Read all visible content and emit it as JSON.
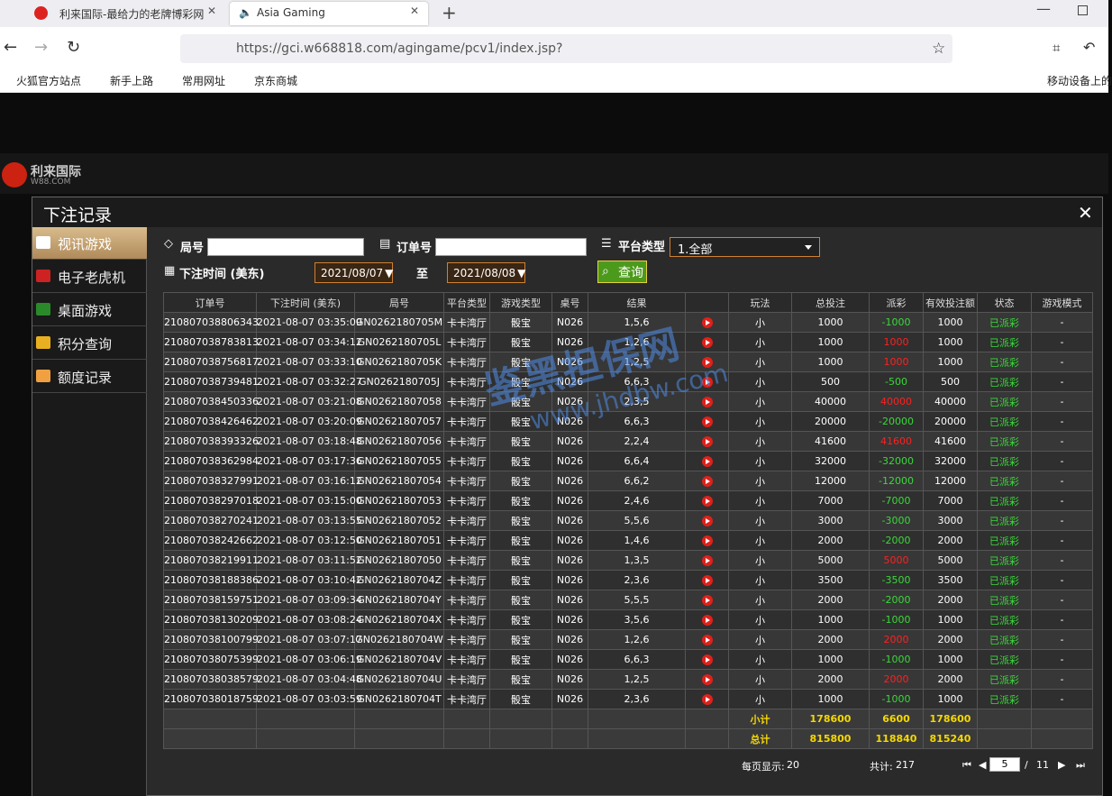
{
  "browser": {
    "tabs": [
      "利来国际-最给力的老牌博彩网",
      "Asia Gaming"
    ],
    "url": "https://gci.w668818.com/agingame/pcv1/index.jsp?",
    "bookmarks": [
      "火狐官方站点",
      "新手上路",
      "常用网址",
      "京东商城"
    ],
    "mobile_bookmarks": "移动设备上的"
  },
  "site": {
    "logo": "利来国际",
    "logo_sub": "W88.COM"
  },
  "watermark": {
    "title": "鉴黑担保网",
    "url": "www.jhdbw.com"
  },
  "modal": {
    "title": "下注记录",
    "sidebar": [
      "视讯游戏",
      "电子老虎机",
      "桌面游戏",
      "积分查询",
      "额度记录"
    ],
    "filters": {
      "round_label": "局号",
      "order_label": "订单号",
      "platform_label": "平台类型",
      "platform_value": "1.全部",
      "time_label": "下注时间 (美东)",
      "date_from": "2021/08/07",
      "to_label": "至",
      "date_to": "2021/08/08",
      "search": "查询"
    },
    "table": {
      "headers": [
        "订单号",
        "下注时间 (美东)",
        "局号",
        "平台类型",
        "游戏类型",
        "桌号",
        "结果",
        "玩法",
        "总投注",
        "派彩",
        "有效投注额",
        "状态",
        "游戏模式"
      ],
      "rows": [
        [
          "210807038806343",
          "2021-08-07 03:35:09",
          "GN0262180705M",
          "卡卡湾厅",
          "骰宝",
          "N026",
          "1,5,6",
          "小",
          1000,
          -1000,
          1000,
          "已派彩",
          "-"
        ],
        [
          "210807038783813",
          "2021-08-07 03:34:12",
          "GN0262180705L",
          "卡卡湾厅",
          "骰宝",
          "N026",
          "1,2,6",
          "小",
          1000,
          1000,
          1000,
          "已派彩",
          "-"
        ],
        [
          "210807038756817",
          "2021-08-07 03:33:10",
          "GN0262180705K",
          "卡卡湾厅",
          "骰宝",
          "N026",
          "1,2,5",
          "小",
          1000,
          1000,
          1000,
          "已派彩",
          "-"
        ],
        [
          "210807038739481",
          "2021-08-07 03:32:27",
          "GN0262180705J",
          "卡卡湾厅",
          "骰宝",
          "N026",
          "6,6,3",
          "小",
          500,
          -500,
          500,
          "已派彩",
          "-"
        ],
        [
          "210807038450336",
          "2021-08-07 03:21:08",
          "GN02621807058",
          "卡卡湾厅",
          "骰宝",
          "N026",
          "2,3,5",
          "小",
          40000,
          40000,
          40000,
          "已派彩",
          "-"
        ],
        [
          "210807038426462",
          "2021-08-07 03:20:09",
          "GN02621807057",
          "卡卡湾厅",
          "骰宝",
          "N026",
          "6,6,3",
          "小",
          20000,
          -20000,
          20000,
          "已派彩",
          "-"
        ],
        [
          "210807038393326",
          "2021-08-07 03:18:48",
          "GN02621807056",
          "卡卡湾厅",
          "骰宝",
          "N026",
          "2,2,4",
          "小",
          41600,
          41600,
          41600,
          "已派彩",
          "-"
        ],
        [
          "210807038362984",
          "2021-08-07 03:17:36",
          "GN02621807055",
          "卡卡湾厅",
          "骰宝",
          "N026",
          "6,6,4",
          "小",
          32000,
          -32000,
          32000,
          "已派彩",
          "-"
        ],
        [
          "210807038327991",
          "2021-08-07 03:16:12",
          "GN02621807054",
          "卡卡湾厅",
          "骰宝",
          "N026",
          "6,6,2",
          "小",
          12000,
          -12000,
          12000,
          "已派彩",
          "-"
        ],
        [
          "210807038297018",
          "2021-08-07 03:15:00",
          "GN02621807053",
          "卡卡湾厅",
          "骰宝",
          "N026",
          "2,4,6",
          "小",
          7000,
          -7000,
          7000,
          "已派彩",
          "-"
        ],
        [
          "210807038270241",
          "2021-08-07 03:13:55",
          "GN02621807052",
          "卡卡湾厅",
          "骰宝",
          "N026",
          "5,5,6",
          "小",
          3000,
          -3000,
          3000,
          "已派彩",
          "-"
        ],
        [
          "210807038242662",
          "2021-08-07 03:12:50",
          "GN02621807051",
          "卡卡湾厅",
          "骰宝",
          "N026",
          "1,4,6",
          "小",
          2000,
          -2000,
          2000,
          "已派彩",
          "-"
        ],
        [
          "210807038219911",
          "2021-08-07 03:11:52",
          "GN02621807050",
          "卡卡湾厅",
          "骰宝",
          "N026",
          "1,3,5",
          "小",
          5000,
          5000,
          5000,
          "已派彩",
          "-"
        ],
        [
          "210807038188386",
          "2021-08-07 03:10:42",
          "GN0262180704Z",
          "卡卡湾厅",
          "骰宝",
          "N026",
          "2,3,6",
          "小",
          3500,
          -3500,
          3500,
          "已派彩",
          "-"
        ],
        [
          "210807038159751",
          "2021-08-07 03:09:34",
          "GN0262180704Y",
          "卡卡湾厅",
          "骰宝",
          "N026",
          "5,5,5",
          "小",
          2000,
          -2000,
          2000,
          "已派彩",
          "-"
        ],
        [
          "210807038130209",
          "2021-08-07 03:08:24",
          "GN0262180704X",
          "卡卡湾厅",
          "骰宝",
          "N026",
          "3,5,6",
          "小",
          1000,
          -1000,
          1000,
          "已派彩",
          "-"
        ],
        [
          "210807038100799",
          "2021-08-07 03:07:17",
          "GN0262180704W",
          "卡卡湾厅",
          "骰宝",
          "N026",
          "1,2,6",
          "小",
          2000,
          2000,
          2000,
          "已派彩",
          "-"
        ],
        [
          "210807038075399",
          "2021-08-07 03:06:19",
          "GN0262180704V",
          "卡卡湾厅",
          "骰宝",
          "N026",
          "6,6,3",
          "小",
          1000,
          -1000,
          1000,
          "已派彩",
          "-"
        ],
        [
          "210807038038579",
          "2021-08-07 03:04:48",
          "GN0262180704U",
          "卡卡湾厅",
          "骰宝",
          "N026",
          "1,2,5",
          "小",
          2000,
          2000,
          2000,
          "已派彩",
          "-"
        ],
        [
          "210807038018759",
          "2021-08-07 03:03:59",
          "GN0262180704T",
          "卡卡湾厅",
          "骰宝",
          "N026",
          "2,3,6",
          "小",
          1000,
          -1000,
          1000,
          "已派彩",
          "-"
        ]
      ],
      "subtotal": {
        "label": "小计",
        "bet": 178600,
        "payout": 6600,
        "valid": 178600
      },
      "total": {
        "label": "总计",
        "bet": 815800,
        "payout": 118840,
        "valid": 815240
      }
    },
    "footer": {
      "page_size_label": "每页显示:",
      "page_size": 20,
      "count_label": "共计:",
      "count": 217,
      "page": 5,
      "separator": "/",
      "pages": 11
    }
  }
}
